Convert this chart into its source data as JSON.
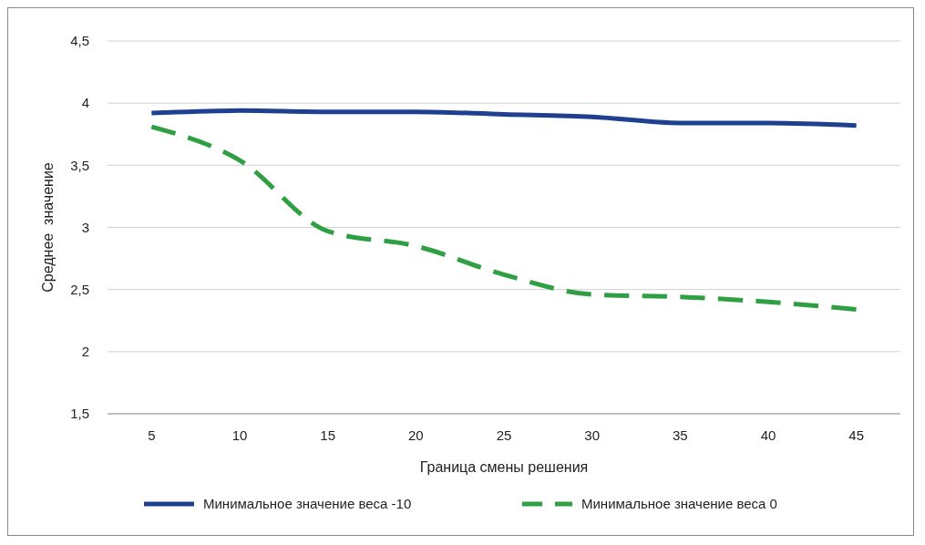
{
  "chart_data": {
    "type": "line",
    "xlabel": "Граница смены решения",
    "ylabel": "Среднее  значение",
    "categories": [
      "5",
      "10",
      "15",
      "20",
      "25",
      "30",
      "35",
      "40",
      "45"
    ],
    "series": [
      {
        "name": "Минимальное значение веса -10",
        "color": "#1f3f8f",
        "line_style": "solid",
        "values": [
          3.92,
          3.94,
          3.93,
          3.93,
          3.91,
          3.89,
          3.84,
          3.84,
          3.82
        ]
      },
      {
        "name": "Минимальное значение веса 0",
        "color": "#2ea043",
        "line_style": "dashed",
        "values": [
          3.81,
          3.54,
          2.97,
          2.85,
          2.62,
          2.46,
          2.44,
          2.4,
          2.34
        ]
      }
    ],
    "ylim": [
      1.5,
      4.5
    ],
    "yticks": [
      {
        "value": 1.5,
        "label": "1,5"
      },
      2,
      {
        "value": 2.5,
        "label": "2,5"
      },
      3,
      {
        "value": 3.5,
        "label": "3,5"
      },
      4,
      {
        "value": 4.5,
        "label": "4,5"
      }
    ],
    "grid": "y",
    "legend": "bottom",
    "marker": "none"
  }
}
